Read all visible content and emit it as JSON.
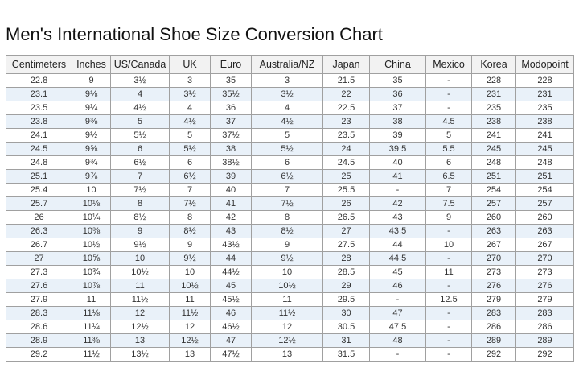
{
  "title": "Men's International Shoe Size Conversion Chart",
  "colors": {
    "stripe_row_bg": "#e9f1f9",
    "header_bg": "#f2f2f2",
    "border": "#a0a0a0",
    "text": "#333333"
  },
  "chart_data": {
    "type": "table",
    "title": "Men's International Shoe Size Conversion Chart",
    "columns": [
      "Centimeters",
      "Inches",
      "US/Canada",
      "UK",
      "Euro",
      "Australia/NZ",
      "Japan",
      "China",
      "Mexico",
      "Korea",
      "Modopoint"
    ],
    "rows": [
      [
        "22.8",
        "9",
        "3½",
        "3",
        "35",
        "3",
        "21.5",
        "35",
        "-",
        "228",
        "228"
      ],
      [
        "23.1",
        "9⅛",
        "4",
        "3½",
        "35½",
        "3½",
        "22",
        "36",
        "-",
        "231",
        "231"
      ],
      [
        "23.5",
        "9¼",
        "4½",
        "4",
        "36",
        "4",
        "22.5",
        "37",
        "-",
        "235",
        "235"
      ],
      [
        "23.8",
        "9⅜",
        "5",
        "4½",
        "37",
        "4½",
        "23",
        "38",
        "4.5",
        "238",
        "238"
      ],
      [
        "24.1",
        "9½",
        "5½",
        "5",
        "37½",
        "5",
        "23.5",
        "39",
        "5",
        "241",
        "241"
      ],
      [
        "24.5",
        "9⅝",
        "6",
        "5½",
        "38",
        "5½",
        "24",
        "39.5",
        "5.5",
        "245",
        "245"
      ],
      [
        "24.8",
        "9¾",
        "6½",
        "6",
        "38½",
        "6",
        "24.5",
        "40",
        "6",
        "248",
        "248"
      ],
      [
        "25.1",
        "9⅞",
        "7",
        "6½",
        "39",
        "6½",
        "25",
        "41",
        "6.5",
        "251",
        "251"
      ],
      [
        "25.4",
        "10",
        "7½",
        "7",
        "40",
        "7",
        "25.5",
        "-",
        "7",
        "254",
        "254"
      ],
      [
        "25.7",
        "10⅛",
        "8",
        "7½",
        "41",
        "7½",
        "26",
        "42",
        "7.5",
        "257",
        "257"
      ],
      [
        "26",
        "10¼",
        "8½",
        "8",
        "42",
        "8",
        "26.5",
        "43",
        "9",
        "260",
        "260"
      ],
      [
        "26.3",
        "10⅜",
        "9",
        "8½",
        "43",
        "8½",
        "27",
        "43.5",
        "-",
        "263",
        "263"
      ],
      [
        "26.7",
        "10½",
        "9½",
        "9",
        "43½",
        "9",
        "27.5",
        "44",
        "10",
        "267",
        "267"
      ],
      [
        "27",
        "10⅝",
        "10",
        "9½",
        "44",
        "9½",
        "28",
        "44.5",
        "-",
        "270",
        "270"
      ],
      [
        "27.3",
        "10¾",
        "10½",
        "10",
        "44½",
        "10",
        "28.5",
        "45",
        "11",
        "273",
        "273"
      ],
      [
        "27.6",
        "10⅞",
        "11",
        "10½",
        "45",
        "10½",
        "29",
        "46",
        "-",
        "276",
        "276"
      ],
      [
        "27.9",
        "11",
        "11½",
        "11",
        "45½",
        "11",
        "29.5",
        "-",
        "12.5",
        "279",
        "279"
      ],
      [
        "28.3",
        "11⅛",
        "12",
        "11½",
        "46",
        "11½",
        "30",
        "47",
        "-",
        "283",
        "283"
      ],
      [
        "28.6",
        "11¼",
        "12½",
        "12",
        "46½",
        "12",
        "30.5",
        "47.5",
        "-",
        "286",
        "286"
      ],
      [
        "28.9",
        "11⅜",
        "13",
        "12½",
        "47",
        "12½",
        "31",
        "48",
        "-",
        "289",
        "289"
      ],
      [
        "29.2",
        "11½",
        "13½",
        "13",
        "47½",
        "13",
        "31.5",
        "-",
        "-",
        "292",
        "292"
      ]
    ]
  }
}
